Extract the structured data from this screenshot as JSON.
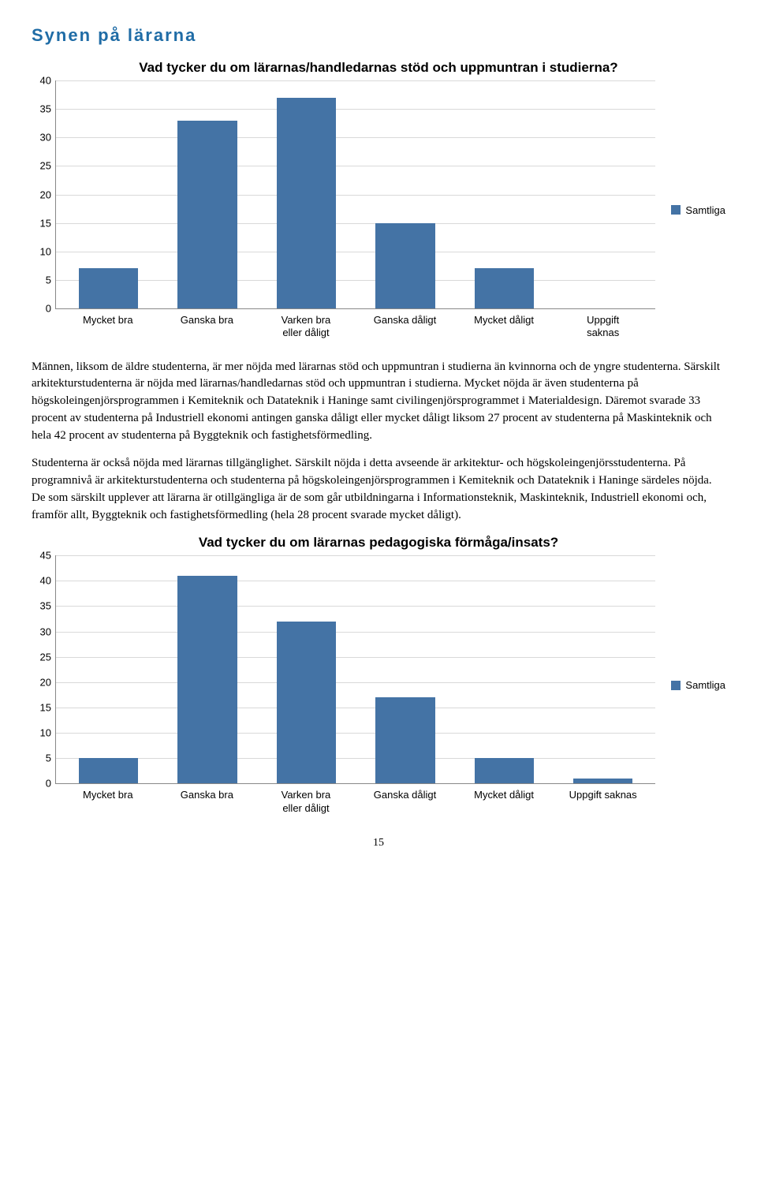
{
  "section_heading": "Synen på lärarna",
  "chart1": {
    "type": "bar",
    "title": "Vad tycker du om lärarnas/handledarnas stöd och uppmuntran i studierna?",
    "categories": [
      "Mycket bra",
      "Ganska bra",
      "Varken bra\neller dåligt",
      "Ganska dåligt",
      "Mycket dåligt",
      "Uppgift\nsaknas"
    ],
    "values": [
      7,
      33,
      37,
      15,
      7,
      0
    ],
    "ylim": [
      0,
      40
    ],
    "ytick_step": 5,
    "bar_color": "#4473a5",
    "grid_color": "#d9d9d9",
    "background_color": "#ffffff",
    "legend_label": "Samtliga",
    "label_fontsize": 13,
    "title_fontsize": 17
  },
  "paragraphs": [
    "Männen, liksom de äldre studenterna, är mer nöjda med lärarnas stöd och uppmuntran i studierna än kvinnorna och de yngre studenterna. Särskilt arkitekturstudenterna är nöjda med lärarnas/handledarnas stöd och uppmuntran i studierna. Mycket nöjda är även studenterna på högskoleingenjörsprogrammen i Kemiteknik och Datateknik i Haninge samt civilingenjörsprogrammet i Materialdesign. Däremot svarade 33 procent av studenterna på Industriell ekonomi antingen ganska dåligt eller mycket dåligt liksom 27 procent av studenterna på Maskinteknik och hela 42 procent av studenterna på Byggteknik och fastighetsförmedling.",
    "Studenterna är också nöjda med lärarnas tillgänglighet. Särskilt nöjda i detta avseende är arkitektur- och högskoleingenjörsstudenterna. På programnivå är arkitekturstudenterna och studenterna på högskoleingenjörsprogrammen i Kemiteknik och Datateknik i Haninge särdeles nöjda. De som särskilt upplever att lärarna är otillgängliga är de som går utbildningarna i Informationsteknik, Maskinteknik, Industriell ekonomi och, framför allt, Byggteknik och fastighetsförmedling (hela 28 procent svarade mycket dåligt)."
  ],
  "chart2": {
    "type": "bar",
    "title": "Vad tycker du om lärarnas pedagogiska förmåga/insats?",
    "categories": [
      "Mycket bra",
      "Ganska bra",
      "Varken bra\neller dåligt",
      "Ganska dåligt",
      "Mycket dåligt",
      "Uppgift saknas"
    ],
    "values": [
      5,
      41,
      32,
      17,
      5,
      1
    ],
    "ylim": [
      0,
      45
    ],
    "ytick_step": 5,
    "bar_color": "#4473a5",
    "grid_color": "#d9d9d9",
    "background_color": "#ffffff",
    "legend_label": "Samtliga",
    "label_fontsize": 13,
    "title_fontsize": 17
  },
  "page_number": "15"
}
